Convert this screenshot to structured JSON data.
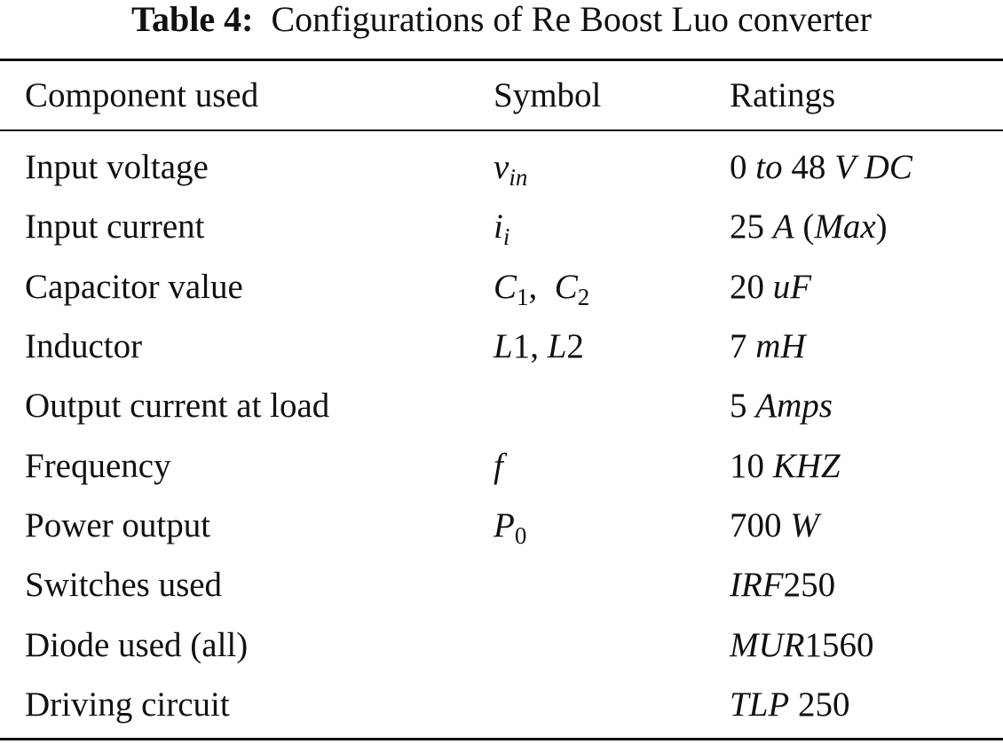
{
  "caption": {
    "label": "Table 4:",
    "text": "Configurations of Re Boost Luo converter"
  },
  "headers": {
    "component": "Component used",
    "symbol": "Symbol",
    "ratings": "Ratings"
  },
  "rows": [
    {
      "component": "Input voltage",
      "symbol": "v_in",
      "rating": "0 to 48 V DC"
    },
    {
      "component": "Input current",
      "symbol": "i_i",
      "rating": "25 A (Max)"
    },
    {
      "component": "Capacitor value",
      "symbol": "C1, C2",
      "rating": "20 uF"
    },
    {
      "component": "Inductor",
      "symbol": "L1, L2",
      "rating": "7 mH"
    },
    {
      "component": "Output current at load",
      "symbol": "",
      "rating": "5 Amps"
    },
    {
      "component": "Frequency",
      "symbol": "f",
      "rating": "10 KHZ"
    },
    {
      "component": "Power output",
      "symbol": "P0",
      "rating": "700 W"
    },
    {
      "component": "Switches used",
      "symbol": "",
      "rating": "IRF250"
    },
    {
      "component": "Diode used (all)",
      "symbol": "",
      "rating": "MUR1560"
    },
    {
      "component": "Driving circuit",
      "symbol": "",
      "rating": "TLP 250"
    }
  ],
  "formatted": {
    "symbols": {
      "r0": {
        "base": "v",
        "sub": "in"
      },
      "r1": {
        "base": "i",
        "sub": "i"
      },
      "r2": {
        "base1": "C",
        "sub1": "1",
        "sep": ",",
        "base2": "C",
        "sub2": "2"
      },
      "r3": {
        "a": "L",
        "a_num": "1",
        "sep": ", ",
        "b": "L",
        "b_num": "2"
      },
      "r5": {
        "base": "f"
      },
      "r6": {
        "base": "P",
        "sub": "0"
      }
    },
    "ratings": {
      "r0": {
        "n1": "0",
        "w1": "to",
        "n2": "48",
        "u1": "V",
        "u2": "DC"
      },
      "r1": {
        "n": "25",
        "u": "A",
        "open": "(",
        "note": "Max",
        "close": ")"
      },
      "r2": {
        "n": "20",
        "u": "uF"
      },
      "r3": {
        "n": "7",
        "u": "mH"
      },
      "r4": {
        "n": "5",
        "u": "Amps"
      },
      "r5": {
        "n": "10",
        "u": "KHZ"
      },
      "r6": {
        "n": "700",
        "u": "W"
      },
      "r7": {
        "part": "IRF",
        "num": "250"
      },
      "r8": {
        "part": "MUR",
        "num": "1560"
      },
      "r9": {
        "part": "TLP",
        "num": "250"
      }
    }
  }
}
